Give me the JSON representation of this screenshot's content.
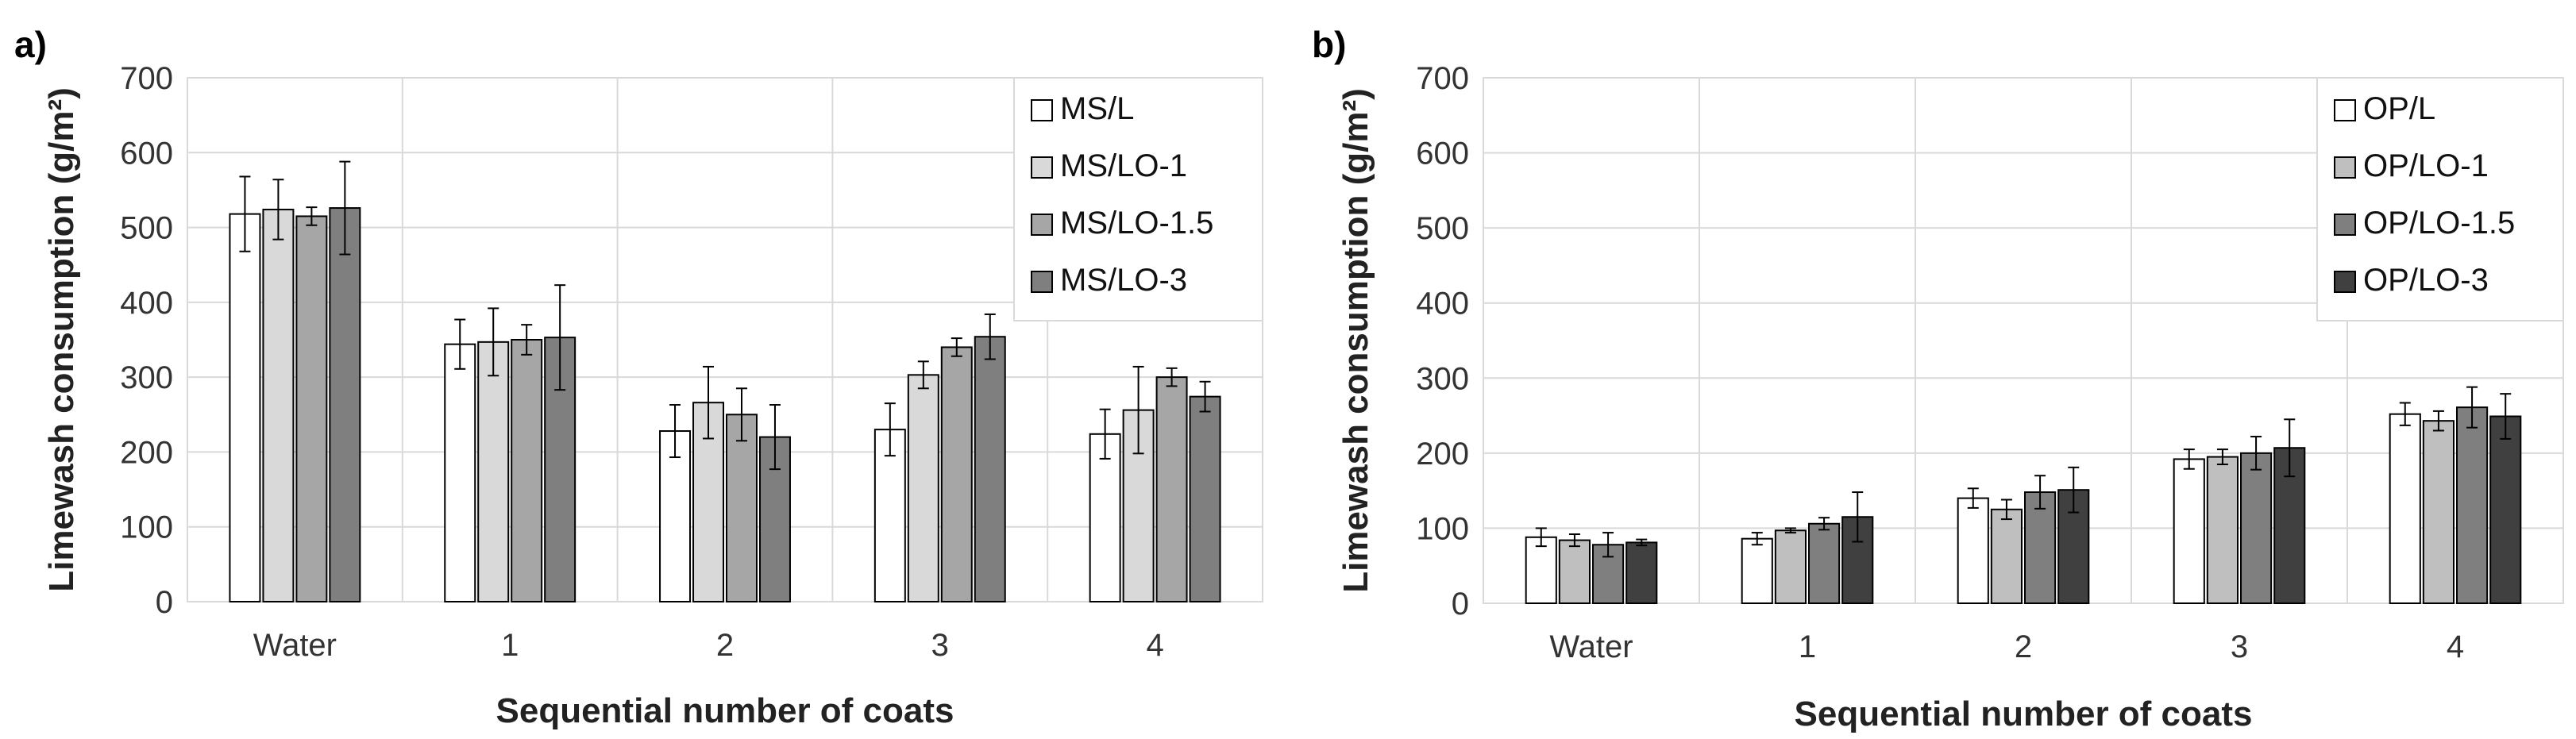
{
  "chart_data": [
    {
      "type": "bar",
      "panel_label": "a)",
      "categories": [
        "Water",
        "1",
        "2",
        "3",
        "4"
      ],
      "xlabel": "Sequential number of coats",
      "ylabel": "Limewash consumption (g/m²)",
      "ylim": [
        0,
        700
      ],
      "yticks": [
        "0",
        "100",
        "200",
        "300",
        "400",
        "500",
        "600",
        "700"
      ],
      "grid": true,
      "legend_position": "top-right",
      "series": [
        {
          "name": "MS/L",
          "color": "#ffffff",
          "values": [
            518,
            344,
            228,
            230,
            224
          ],
          "errors": [
            50,
            33,
            35,
            35,
            33
          ]
        },
        {
          "name": "MS/LO-1",
          "color": "#d9d9d9",
          "values": [
            524,
            347,
            266,
            303,
            256
          ],
          "errors": [
            40,
            45,
            48,
            18,
            58
          ]
        },
        {
          "name": "MS/LO-1.5",
          "color": "#a6a6a6",
          "values": [
            515,
            350,
            250,
            340,
            300
          ],
          "errors": [
            12,
            20,
            35,
            12,
            12
          ]
        },
        {
          "name": "MS/LO-3",
          "color": "#7f7f7f",
          "values": [
            526,
            353,
            220,
            354,
            274
          ],
          "errors": [
            62,
            70,
            43,
            30,
            20
          ]
        }
      ]
    },
    {
      "type": "bar",
      "panel_label": "b)",
      "categories": [
        "Water",
        "1",
        "2",
        "3",
        "4"
      ],
      "xlabel": "Sequential number of coats",
      "ylabel": "Limewash consumption (g/m²)",
      "ylim": [
        0,
        700
      ],
      "yticks": [
        "0",
        "100",
        "200",
        "300",
        "400",
        "500",
        "600",
        "700"
      ],
      "grid": true,
      "legend_position": "top-right",
      "series": [
        {
          "name": "OP/L",
          "color": "#ffffff",
          "values": [
            88,
            86,
            140,
            192,
            252
          ],
          "errors": [
            12,
            8,
            13,
            13,
            15
          ]
        },
        {
          "name": "OP/LO-1",
          "color": "#bfbfbf",
          "values": [
            84,
            97,
            125,
            195,
            243
          ],
          "errors": [
            8,
            3,
            13,
            10,
            13
          ]
        },
        {
          "name": "OP/LO-1.5",
          "color": "#7f7f7f",
          "values": [
            78,
            106,
            148,
            200,
            261
          ],
          "errors": [
            16,
            8,
            22,
            22,
            27
          ]
        },
        {
          "name": "OP/LO-3",
          "color": "#404040",
          "values": [
            81,
            115,
            151,
            207,
            249
          ],
          "errors": [
            4,
            33,
            30,
            38,
            30
          ]
        }
      ]
    }
  ]
}
